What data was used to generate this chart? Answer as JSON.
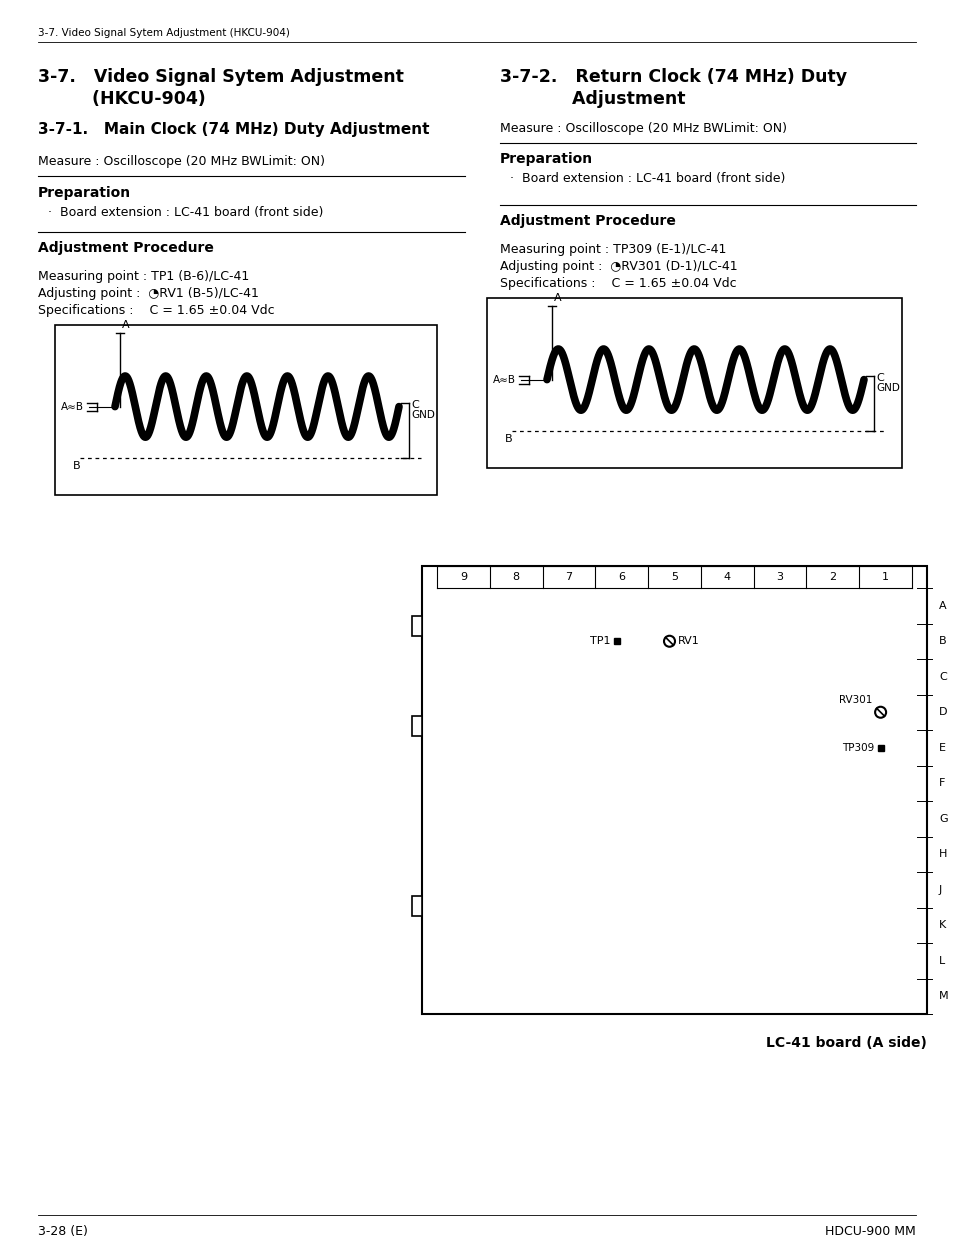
{
  "bg_color": "#ffffff",
  "page_header": "3-7. Video Signal Sytem Adjustment (HKCU-904)",
  "footer_left": "3-28 (E)",
  "footer_right": "HDCU-900 MM",
  "board_col_labels": [
    "9",
    "8",
    "7",
    "6",
    "5",
    "4",
    "3",
    "2",
    "1"
  ],
  "board_row_labels": [
    "A",
    "B",
    "C",
    "D",
    "E",
    "F",
    "G",
    "H",
    "J",
    "K",
    "L",
    "M"
  ],
  "board_caption": "LC-41 board (A side)"
}
